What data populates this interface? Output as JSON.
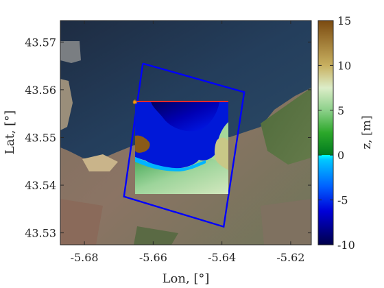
{
  "chart_data": {
    "type": "heatmap",
    "title": "",
    "xlabel": "Lon, [°]",
    "ylabel": "Lat, [°]",
    "xlim": [
      -5.687,
      -5.614
    ],
    "ylim": [
      43.5275,
      43.5745
    ],
    "xticks": [
      -5.68,
      -5.66,
      -5.64,
      -5.62
    ],
    "xtick_labels": [
      "-5.68",
      "-5.66",
      "-5.64",
      "-5.62"
    ],
    "yticks": [
      43.53,
      43.54,
      43.55,
      43.56,
      43.57
    ],
    "ytick_labels": [
      "43.53",
      "43.54",
      "43.55",
      "43.56",
      "43.57"
    ],
    "background": "satellite image (coastline, sea, city)",
    "domain_box": {
      "color": "#0000ff",
      "lon": [
        -5.663,
        -5.6335,
        -5.6395,
        -5.6685,
        -5.663
      ],
      "lat": [
        43.5655,
        43.5595,
        43.5313,
        43.5376,
        43.5655
      ]
    },
    "data_extent": {
      "lon": [
        -5.6605,
        -5.6397
      ],
      "lat": [
        43.5376,
        43.556
      ]
    },
    "colorbar": {
      "label": "z, [m]",
      "range": [
        -10,
        15
      ],
      "ticks": [
        15,
        10,
        5,
        0,
        -5,
        -10
      ],
      "tick_labels": [
        "15",
        "10",
        "5",
        "0",
        "-5",
        "-10"
      ],
      "colors_bottom_to_top": [
        "#00004a",
        "#0000d8",
        "#0060ff",
        "#00c8ff",
        "#00ffff",
        "#007a1e",
        "#2ca82a",
        "#8cd08a",
        "#dcedc8",
        "#c8b060",
        "#7b4a10"
      ]
    }
  }
}
